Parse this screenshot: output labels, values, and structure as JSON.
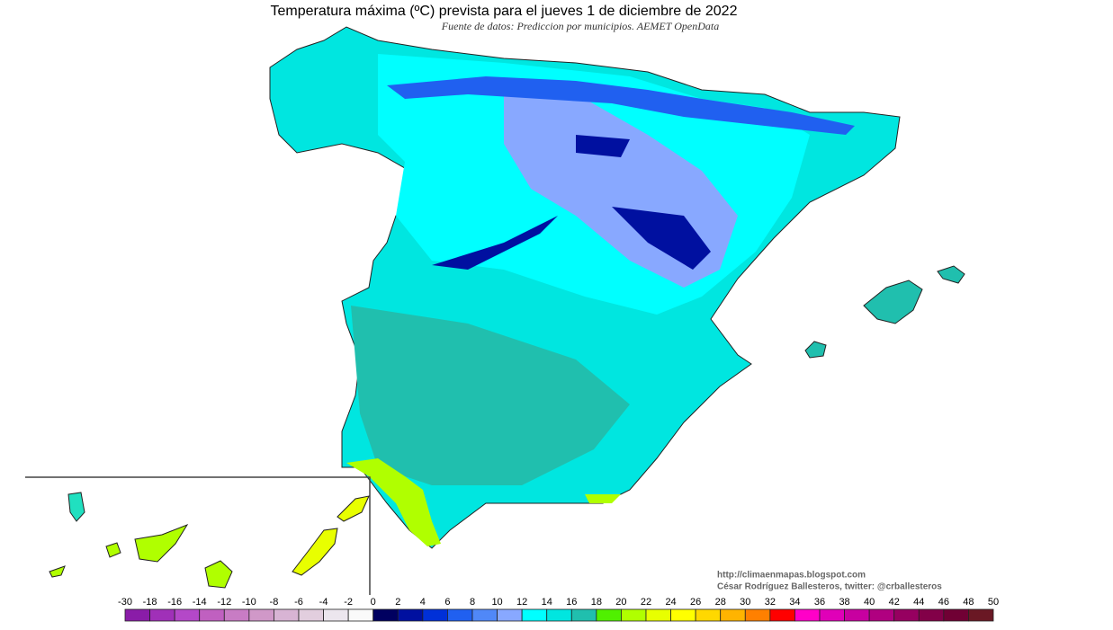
{
  "title": "Temperatura máxima (ºC) prevista para el jueves 1 de diciembre de 2022",
  "subtitle": "Fuente de datos: Prediccion por municipios. AEMET OpenData",
  "credits": [
    "http://climaenmapas.blogspot.com",
    "César Rodríguez Ballesteros, twitter: @crballesteros"
  ],
  "legend": {
    "labels": [
      -30,
      -18,
      -16,
      -14,
      -12,
      -10,
      -8,
      -6,
      -4,
      -2,
      0,
      2,
      4,
      6,
      8,
      10,
      12,
      14,
      16,
      18,
      20,
      22,
      24,
      26,
      28,
      30,
      32,
      34,
      36,
      38,
      40,
      42,
      44,
      46,
      48,
      50
    ],
    "colors": [
      "#8a1ca8",
      "#a030b8",
      "#b448c8",
      "#c060c0",
      "#c87cc4",
      "#d098c8",
      "#d8b4d4",
      "#e2cede",
      "#ece6ee",
      "#fafafa",
      "#000060",
      "#0010a0",
      "#0030d8",
      "#2060f0",
      "#5088f8",
      "#88a8ff",
      "#00ffff",
      "#00e6e0",
      "#20bfae",
      "#50f000",
      "#b0ff00",
      "#e8ff00",
      "#ffff00",
      "#ffd800",
      "#ffb400",
      "#ff8000",
      "#ff0000",
      "#ff00c8",
      "#e000b8",
      "#c800a0",
      "#b00080",
      "#960060",
      "#820048",
      "#700034",
      "#6a1824"
    ]
  }
}
